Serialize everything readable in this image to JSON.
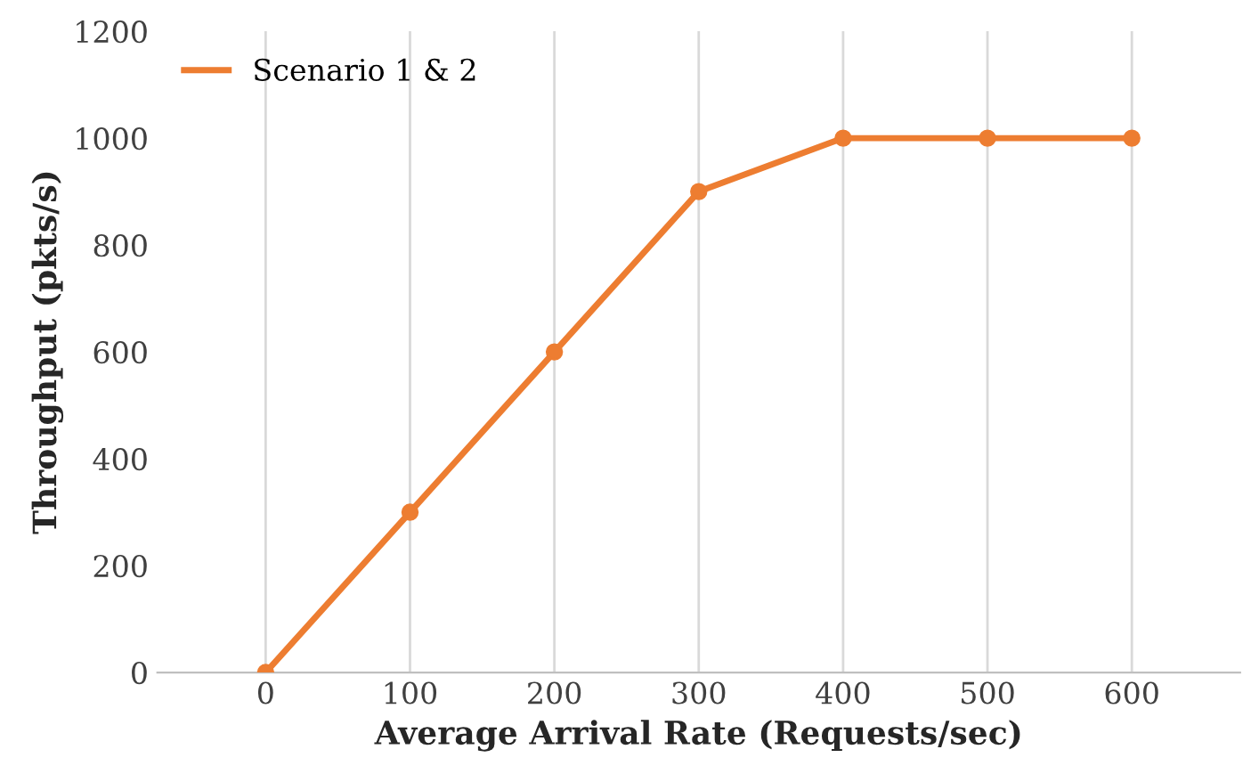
{
  "chart_data": {
    "type": "line",
    "xlabel": "Average Arrival Rate (Requests/sec)",
    "ylabel": "Throughput (pkts/s)",
    "x": [
      0,
      100,
      200,
      300,
      400,
      500,
      600
    ],
    "series": [
      {
        "name": "Scenario 1 & 2",
        "color": "#ed7d31",
        "values": [
          0,
          300,
          600,
          900,
          1000,
          1000,
          1000
        ]
      }
    ],
    "xlim": [
      -75,
      675
    ],
    "xticks": [
      0,
      100,
      200,
      300,
      400,
      500,
      600
    ],
    "ylim": [
      0,
      1200
    ],
    "yticks": [
      0,
      200,
      400,
      600,
      800,
      1000,
      1200
    ],
    "grid": "x",
    "legend": "top left",
    "marker": "circle",
    "line_style": "solid"
  }
}
